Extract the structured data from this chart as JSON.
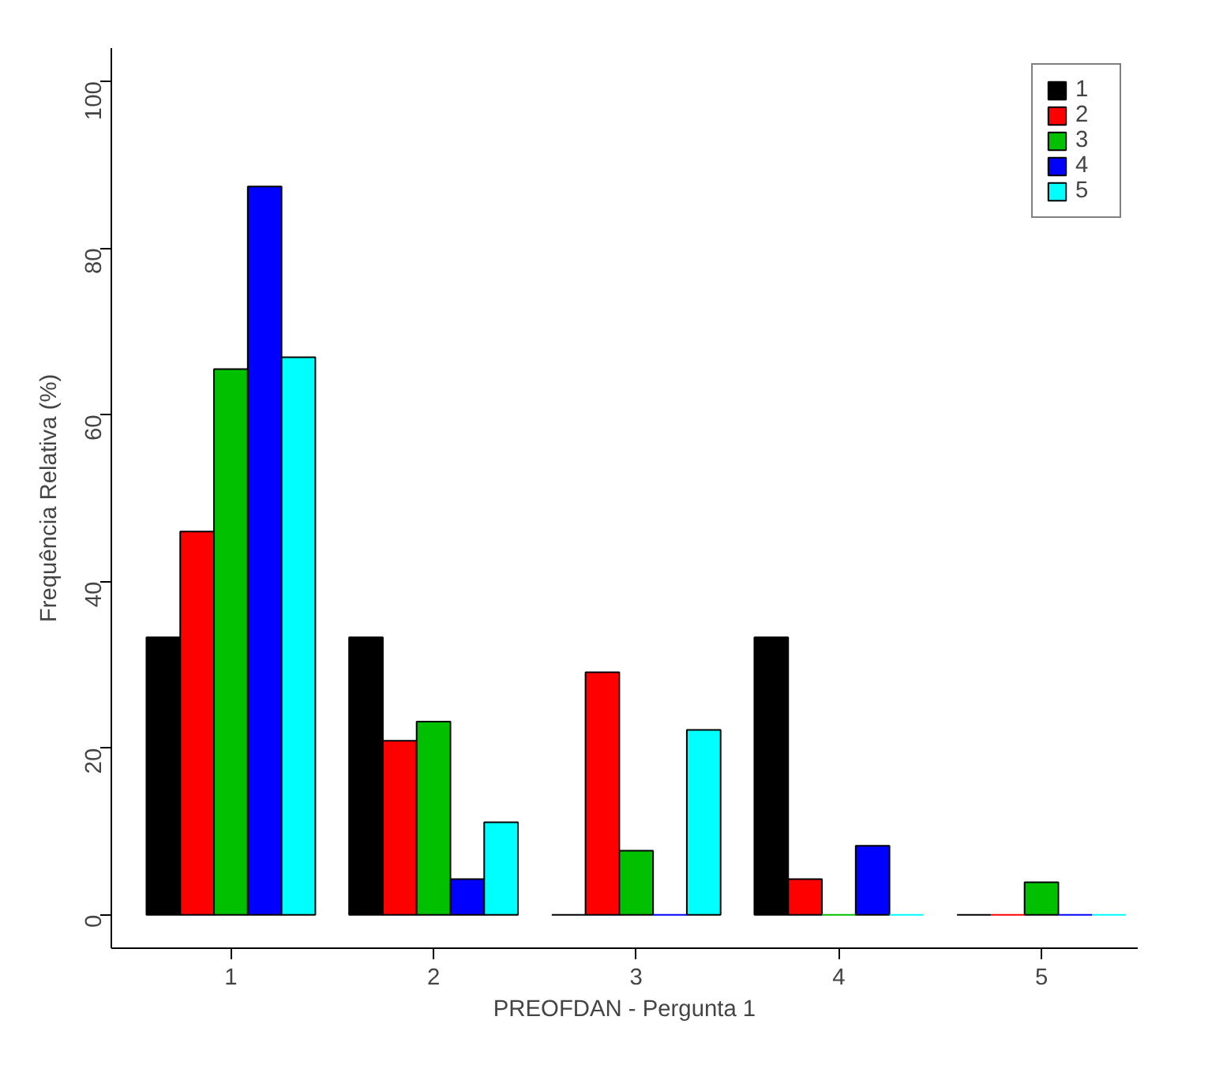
{
  "chart_data": {
    "type": "bar",
    "xlabel": "PREOFDAN - Pergunta 1",
    "ylabel": "Frequência Relativa (%)",
    "categories": [
      "1",
      "2",
      "3",
      "4",
      "5"
    ],
    "series": [
      {
        "name": "1",
        "color": "#000000",
        "values": [
          33.3,
          33.3,
          0,
          33.3,
          0
        ]
      },
      {
        "name": "2",
        "color": "#ff0000",
        "values": [
          46,
          20.9,
          29.1,
          4.3,
          0
        ]
      },
      {
        "name": "3",
        "color": "#00c000",
        "values": [
          65.5,
          23.2,
          7.7,
          0,
          3.9
        ]
      },
      {
        "name": "4",
        "color": "#0000ff",
        "values": [
          87.4,
          4.3,
          0,
          8.3,
          0
        ]
      },
      {
        "name": "5",
        "color": "#00ffff",
        "values": [
          66.9,
          11.1,
          22.2,
          0,
          0
        ]
      }
    ],
    "ylim": [
      -4,
      104
    ],
    "yticks": [
      0,
      20,
      40,
      60,
      80,
      100
    ],
    "grid": false,
    "legend": "top right"
  }
}
